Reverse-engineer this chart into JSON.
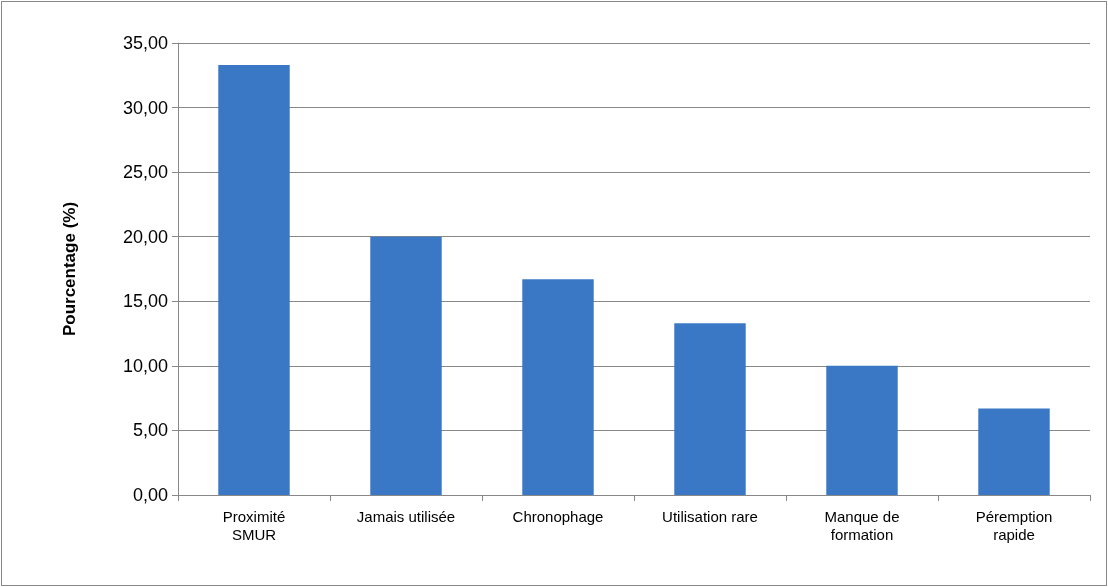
{
  "chart_data": {
    "type": "bar",
    "ylabel": "Pourcentage (%)",
    "categories": [
      "Proximité\nSMUR",
      "Jamais utilisée",
      "Chronophage",
      "Utilisation rare",
      "Manque de\nformation",
      "Péremption\nrapide"
    ],
    "values": [
      33.3,
      20.0,
      16.7,
      13.3,
      10.0,
      6.7
    ],
    "color": "#3a78c6",
    "ylim": [
      0,
      35
    ],
    "yticks": [
      {
        "value": 0,
        "label": "0,00"
      },
      {
        "value": 5,
        "label": "5,00"
      },
      {
        "value": 10,
        "label": "10,00"
      },
      {
        "value": 15,
        "label": "15,00"
      },
      {
        "value": 20,
        "label": "20,00"
      },
      {
        "value": 25,
        "label": "25,00"
      },
      {
        "value": 30,
        "label": "30,00"
      },
      {
        "value": 35,
        "label": "35,00"
      }
    ],
    "grid": "y"
  }
}
